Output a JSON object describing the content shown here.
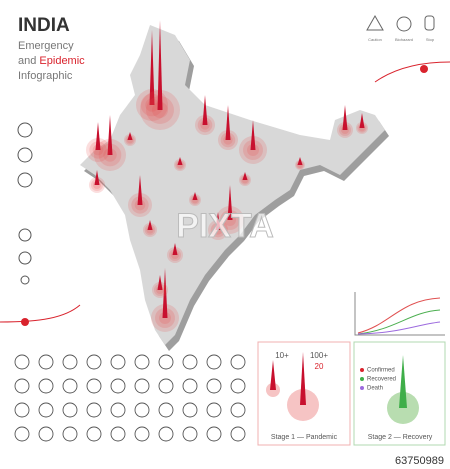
{
  "header": {
    "title": "INDIA",
    "line1": "Emergency",
    "line2_prefix": "and",
    "line2_highlight": "Epidemic",
    "line3": "Infographic"
  },
  "hazard_icons": [
    "Caution",
    "Biohazard",
    "Stop"
  ],
  "stages": [
    {
      "labels": [
        "10+",
        "100+"
      ],
      "count": "20",
      "caption": "Stage 1 — Pandemic"
    },
    {
      "legend": [
        "Confirmed",
        "Recovered",
        "Death"
      ],
      "caption": "Stage 2 — Recovery"
    }
  ],
  "watermark": "PIXTA",
  "image_id": "63750989"
}
